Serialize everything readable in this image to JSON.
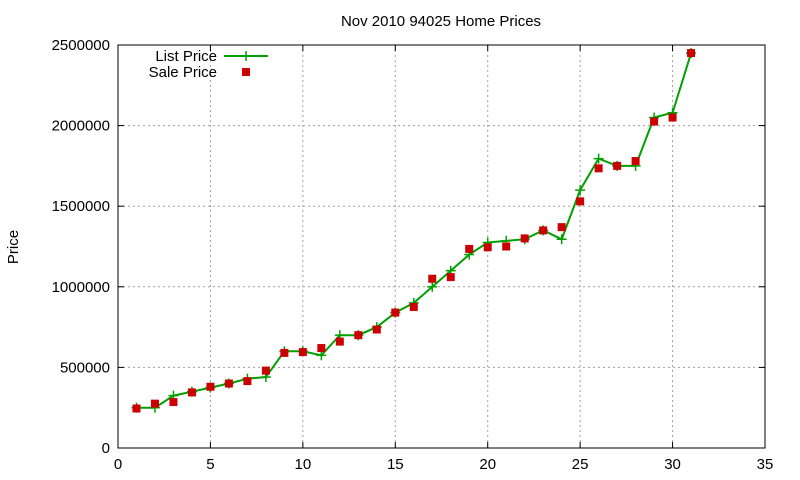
{
  "chart_data": {
    "type": "line",
    "title": "Nov 2010 94025 Home Prices",
    "xlabel": "",
    "ylabel": "Price",
    "xlim": [
      0,
      35
    ],
    "ylim": [
      0,
      2500000
    ],
    "xticks": [
      0,
      5,
      10,
      15,
      20,
      25,
      30,
      35
    ],
    "yticks": [
      0,
      500000,
      1000000,
      1500000,
      2000000,
      2500000
    ],
    "grid": true,
    "legend_position": "top-left",
    "series": [
      {
        "name": "List Price",
        "style": "line-plus",
        "color": "#00a000",
        "points": [
          [
            1,
            250000
          ],
          [
            2,
            250000
          ],
          [
            3,
            325000
          ],
          [
            4,
            349000
          ],
          [
            5,
            375000
          ],
          [
            6,
            400000
          ],
          [
            7,
            430000
          ],
          [
            8,
            440000
          ],
          [
            9,
            600000
          ],
          [
            10,
            600000
          ],
          [
            11,
            575000
          ],
          [
            12,
            700000
          ],
          [
            13,
            700000
          ],
          [
            14,
            750000
          ],
          [
            15,
            840000
          ],
          [
            16,
            900000
          ],
          [
            17,
            1000000
          ],
          [
            18,
            1100000
          ],
          [
            19,
            1200000
          ],
          [
            20,
            1275000
          ],
          [
            21,
            1285000
          ],
          [
            22,
            1295000
          ],
          [
            23,
            1350000
          ],
          [
            24,
            1295000
          ],
          [
            25,
            1600000
          ],
          [
            26,
            1795000
          ],
          [
            27,
            1750000
          ],
          [
            28,
            1750000
          ],
          [
            29,
            2050000
          ],
          [
            30,
            2080000
          ],
          [
            31,
            2450000
          ]
        ]
      },
      {
        "name": "Sale Price",
        "style": "square-points",
        "color": "#cc0000",
        "points": [
          [
            1,
            245000
          ],
          [
            2,
            275000
          ],
          [
            3,
            285000
          ],
          [
            4,
            345000
          ],
          [
            5,
            380000
          ],
          [
            6,
            400000
          ],
          [
            7,
            415000
          ],
          [
            8,
            480000
          ],
          [
            9,
            590000
          ],
          [
            10,
            595000
          ],
          [
            11,
            620000
          ],
          [
            12,
            660000
          ],
          [
            13,
            700000
          ],
          [
            14,
            735000
          ],
          [
            15,
            840000
          ],
          [
            16,
            875000
          ],
          [
            17,
            1050000
          ],
          [
            18,
            1060000
          ],
          [
            19,
            1235000
          ],
          [
            20,
            1245000
          ],
          [
            21,
            1250000
          ],
          [
            22,
            1300000
          ],
          [
            23,
            1350000
          ],
          [
            24,
            1370000
          ],
          [
            25,
            1530000
          ],
          [
            26,
            1735000
          ],
          [
            27,
            1750000
          ],
          [
            28,
            1780000
          ],
          [
            29,
            2025000
          ],
          [
            30,
            2050000
          ],
          [
            31,
            2450000
          ]
        ]
      }
    ]
  }
}
